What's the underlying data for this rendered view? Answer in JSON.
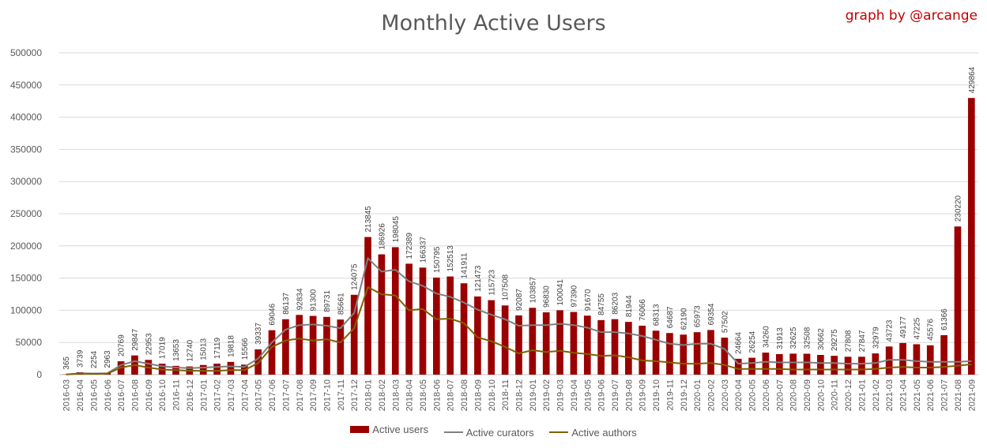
{
  "credit": "graph by @arcange",
  "chart_data": {
    "type": "bar",
    "title": "Monthly Active Users",
    "ylim": [
      0,
      500000
    ],
    "yticks": [
      0,
      50000,
      100000,
      150000,
      200000,
      250000,
      300000,
      350000,
      400000,
      450000,
      500000
    ],
    "grid": true,
    "legend_position": "bottom",
    "categories": [
      "2016-03",
      "2016-04",
      "2016-05",
      "2016-06",
      "2016-07",
      "2016-08",
      "2016-09",
      "2016-10",
      "2016-11",
      "2016-12",
      "2017-01",
      "2017-02",
      "2017-03",
      "2017-04",
      "2017-05",
      "2017-06",
      "2017-07",
      "2017-08",
      "2017-09",
      "2017-10",
      "2017-11",
      "2017-12",
      "2018-01",
      "2018-02",
      "2018-03",
      "2018-04",
      "2018-05",
      "2018-06",
      "2018-07",
      "2018-08",
      "2018-09",
      "2018-10",
      "2018-11",
      "2018-12",
      "2019-01",
      "2019-02",
      "2019-03",
      "2019-04",
      "2019-05",
      "2019-06",
      "2019-07",
      "2019-08",
      "2019-09",
      "2019-10",
      "2019-11",
      "2019-12",
      "2020-01",
      "2020-02",
      "2020-03",
      "2020-04",
      "2020-05",
      "2020-06",
      "2020-07",
      "2020-08",
      "2020-09",
      "2020-10",
      "2020-11",
      "2020-12",
      "2021-01",
      "2021-02",
      "2021-03",
      "2021-04",
      "2021-05",
      "2021-06",
      "2021-07",
      "2021-08",
      "2021-09"
    ],
    "series": [
      {
        "name": "Active users",
        "kind": "bar",
        "color": "#9b0000",
        "values": [
          365,
          3739,
          2254,
          2963,
          20769,
          29847,
          22953,
          17019,
          13653,
          12740,
          15013,
          17119,
          19818,
          15566,
          39337,
          69046,
          86137,
          92834,
          91300,
          89731,
          85661,
          124075,
          213845,
          186926,
          198045,
          172389,
          166337,
          150795,
          152513,
          141911,
          121473,
          115723,
          107508,
          92087,
          103857,
          96830,
          100041,
          97390,
          91670,
          84755,
          86203,
          81944,
          76066,
          68313,
          64687,
          62190,
          65973,
          69354,
          57502,
          24664,
          26254,
          34260,
          31913,
          32625,
          32508,
          30662,
          29275,
          27808,
          27847,
          32979,
          43723,
          49177,
          47225,
          45576,
          61366,
          230220,
          429864
        ]
      },
      {
        "name": "Active curators",
        "kind": "line",
        "color": "#7f7f7f",
        "values": [
          300,
          2000,
          1800,
          2200,
          15000,
          21000,
          17000,
          13000,
          11000,
          10000,
          11000,
          12000,
          13000,
          12000,
          25000,
          50000,
          70000,
          77000,
          78000,
          76000,
          72000,
          96000,
          181000,
          160000,
          163000,
          145000,
          138000,
          126000,
          121000,
          112000,
          101000,
          93000,
          86000,
          76000,
          77000,
          77000,
          79000,
          77000,
          73000,
          66000,
          66000,
          64000,
          60000,
          54000,
          48000,
          46000,
          48000,
          48000,
          40000,
          17000,
          18000,
          20000,
          19000,
          19000,
          19000,
          18000,
          18000,
          17000,
          17000,
          18000,
          23000,
          23000,
          21000,
          20000,
          20000,
          20000,
          21000
        ]
      },
      {
        "name": "Active authors",
        "kind": "line",
        "color": "#806000",
        "values": [
          200,
          1500,
          1200,
          1500,
          11000,
          15000,
          11000,
          8000,
          7000,
          6000,
          6000,
          6000,
          7000,
          7000,
          18000,
          43000,
          53000,
          56000,
          53000,
          55000,
          50000,
          72000,
          136000,
          125000,
          123000,
          100000,
          102000,
          86000,
          87000,
          80000,
          58000,
          52000,
          43000,
          33000,
          38000,
          35000,
          37000,
          34000,
          32000,
          29000,
          30000,
          27000,
          22000,
          21000,
          19000,
          17000,
          17000,
          18000,
          15000,
          9000,
          9000,
          9000,
          9000,
          8000,
          8000,
          8000,
          8000,
          8000,
          8000,
          9000,
          11000,
          12000,
          11000,
          11000,
          12000,
          14000,
          16000
        ]
      }
    ]
  }
}
